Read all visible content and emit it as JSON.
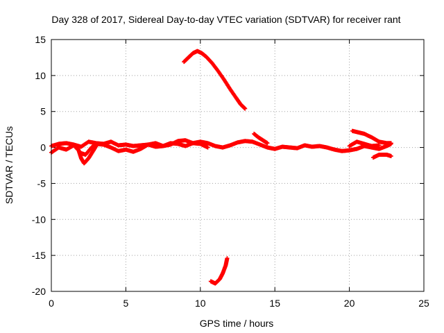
{
  "chart_data": {
    "type": "scatter",
    "title": "Day 328 of 2017, Sidereal Day-to-day VTEC variation (SDTVAR) for receiver rant",
    "xlabel": "GPS time / hours",
    "ylabel": "SDTVAR / TECUs",
    "xlim": [
      0,
      25
    ],
    "ylim": [
      -20,
      15
    ],
    "xticks": [
      0,
      5,
      10,
      15,
      20,
      25
    ],
    "yticks": [
      -20,
      -15,
      -10,
      -5,
      0,
      5,
      10,
      15
    ],
    "grid": true,
    "series_color": "#ff0000",
    "series": [
      {
        "name": "arc-main-1",
        "points": [
          [
            0,
            0.2
          ],
          [
            0.5,
            0.5
          ],
          [
            1,
            0.6
          ],
          [
            1.5,
            0.4
          ],
          [
            2,
            0.1
          ],
          [
            2.5,
            0.8
          ],
          [
            3,
            0.6
          ],
          [
            3.5,
            0.5
          ],
          [
            4,
            0.8
          ],
          [
            4.5,
            0.3
          ],
          [
            5,
            0.4
          ],
          [
            5.5,
            0.2
          ],
          [
            6,
            0.3
          ],
          [
            6.5,
            0.4
          ],
          [
            7,
            0.1
          ],
          [
            7.5,
            0.2
          ],
          [
            8,
            0.4
          ],
          [
            8.5,
            0.9
          ],
          [
            9,
            1.0
          ],
          [
            9.5,
            0.6
          ],
          [
            10,
            0.8
          ],
          [
            10.5,
            0.6
          ],
          [
            11,
            0.2
          ],
          [
            11.5,
            0.0
          ],
          [
            12,
            0.3
          ],
          [
            12.5,
            0.7
          ],
          [
            13,
            0.9
          ],
          [
            13.5,
            0.8
          ],
          [
            14,
            0.4
          ],
          [
            14.5,
            0.0
          ],
          [
            15,
            -0.2
          ],
          [
            15.5,
            0.1
          ],
          [
            16,
            0.0
          ],
          [
            16.5,
            -0.1
          ],
          [
            17,
            0.3
          ],
          [
            17.5,
            0.1
          ],
          [
            18,
            0.2
          ],
          [
            18.5,
            0.0
          ],
          [
            19,
            -0.3
          ],
          [
            19.5,
            -0.5
          ],
          [
            20,
            -0.4
          ],
          [
            20.5,
            -0.2
          ],
          [
            21,
            0.2
          ],
          [
            21.5,
            0.0
          ],
          [
            22,
            -0.2
          ],
          [
            22.5,
            0.2
          ],
          [
            22.8,
            0.5
          ]
        ]
      },
      {
        "name": "arc-main-2",
        "points": [
          [
            0,
            -0.7
          ],
          [
            0.5,
            0.0
          ],
          [
            1,
            -0.3
          ],
          [
            1.5,
            0.3
          ],
          [
            2,
            -0.8
          ],
          [
            2.3,
            -1.0
          ],
          [
            2.7,
            0.0
          ],
          [
            3,
            0.5
          ],
          [
            3.5,
            0.4
          ],
          [
            4,
            0.0
          ],
          [
            4.5,
            -0.5
          ],
          [
            5,
            -0.3
          ],
          [
            5.5,
            -0.6
          ],
          [
            6,
            -0.2
          ],
          [
            6.5,
            0.4
          ],
          [
            7,
            0.6
          ],
          [
            7.5,
            0.2
          ],
          [
            8,
            0.6
          ],
          [
            8.5,
            0.5
          ],
          [
            9,
            0.2
          ],
          [
            9.5,
            0.6
          ],
          [
            10,
            0.5
          ],
          [
            10.5,
            0.0
          ]
        ]
      },
      {
        "name": "arc-dip",
        "points": [
          [
            1.8,
            -0.2
          ],
          [
            2.0,
            -1.5
          ],
          [
            2.2,
            -2.2
          ],
          [
            2.5,
            -1.5
          ],
          [
            2.8,
            -0.5
          ],
          [
            3.0,
            0.2
          ]
        ]
      },
      {
        "name": "arc-late-high",
        "points": [
          [
            20.2,
            2.3
          ],
          [
            20.6,
            2.1
          ],
          [
            21.0,
            1.9
          ],
          [
            21.5,
            1.4
          ],
          [
            22.0,
            0.8
          ],
          [
            22.5,
            0.6
          ],
          [
            22.8,
            0.6
          ]
        ]
      },
      {
        "name": "arc-late-mid",
        "points": [
          [
            20.0,
            0.2
          ],
          [
            20.5,
            0.8
          ],
          [
            21.0,
            0.5
          ],
          [
            21.5,
            0.2
          ],
          [
            22.0,
            0.3
          ]
        ]
      },
      {
        "name": "arc-late-low",
        "points": [
          [
            21.6,
            -1.4
          ],
          [
            22.0,
            -1.0
          ],
          [
            22.5,
            -1.0
          ],
          [
            22.8,
            -1.2
          ]
        ]
      },
      {
        "name": "arc-spike-14",
        "points": [
          [
            13.6,
            1.9
          ],
          [
            13.9,
            1.4
          ],
          [
            14.2,
            1.0
          ],
          [
            14.5,
            0.6
          ]
        ]
      },
      {
        "name": "arc-high",
        "points": [
          [
            8.9,
            11.9
          ],
          [
            9.2,
            12.5
          ],
          [
            9.5,
            13.1
          ],
          [
            9.8,
            13.4
          ],
          [
            10.1,
            13.1
          ],
          [
            10.4,
            12.6
          ],
          [
            10.8,
            11.7
          ],
          [
            11.2,
            10.6
          ],
          [
            11.6,
            9.4
          ],
          [
            12.0,
            8.1
          ],
          [
            12.4,
            6.9
          ],
          [
            12.7,
            6.0
          ],
          [
            13.0,
            5.4
          ]
        ]
      },
      {
        "name": "arc-low",
        "points": [
          [
            10.7,
            -18.6
          ],
          [
            11.0,
            -18.9
          ],
          [
            11.3,
            -18.3
          ],
          [
            11.5,
            -17.5
          ],
          [
            11.7,
            -16.4
          ],
          [
            11.8,
            -15.4
          ]
        ]
      }
    ]
  }
}
